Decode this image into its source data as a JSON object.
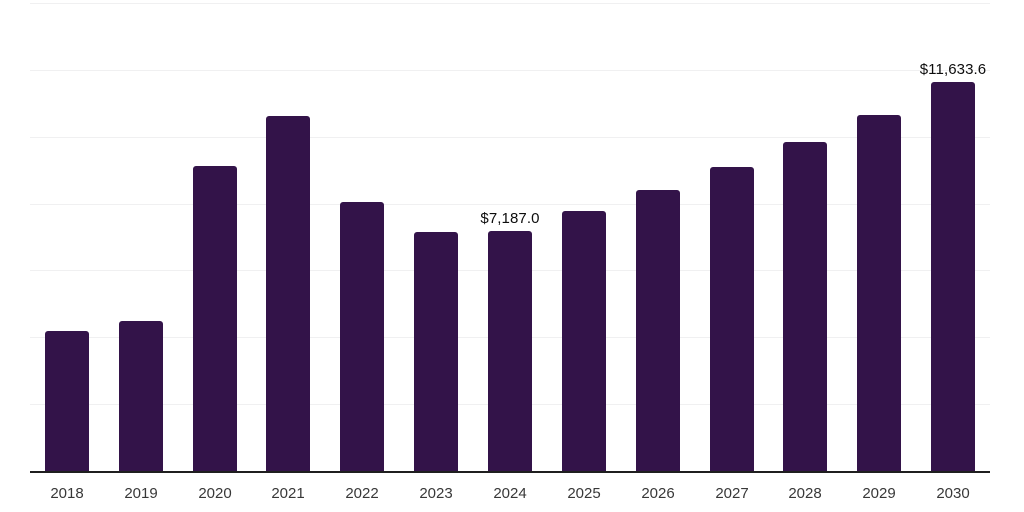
{
  "chart_data": {
    "type": "bar",
    "title": "",
    "xlabel": "",
    "ylabel": "",
    "categories": [
      "2018",
      "2019",
      "2020",
      "2021",
      "2022",
      "2023",
      "2024",
      "2025",
      "2026",
      "2027",
      "2028",
      "2029",
      "2030"
    ],
    "values": [
      4200,
      4500,
      9130,
      10610,
      8060,
      7150,
      7187.0,
      7790,
      8410,
      9080,
      9850,
      10660,
      11633.6
    ],
    "point_labels": [
      "",
      "",
      "",
      "",
      "",
      "",
      "$7,187.0",
      "",
      "",
      "",
      "",
      "",
      "$11,633.6"
    ],
    "ylim": [
      0,
      14000
    ],
    "gridline_step": 2000,
    "grid": true,
    "legend_position": "none",
    "y_tick_labels_visible": false,
    "colors": {
      "bar": "#331349",
      "axis": "#1f1f1f",
      "gridline": "#f0f0f1",
      "point_label": "#0d0d0d",
      "tick_label": "#383838",
      "background": "#ffffff"
    }
  }
}
